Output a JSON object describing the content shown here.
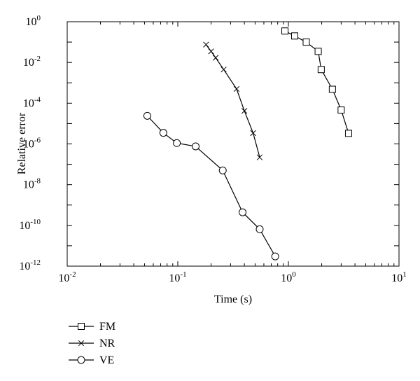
{
  "chart_data": {
    "type": "line",
    "title": "",
    "xlabel": "Time (s)",
    "ylabel": "Relative error",
    "xscale": "log",
    "yscale": "log",
    "xlim": [
      0.01,
      10
    ],
    "ylim": [
      1e-12,
      1
    ],
    "grid": false,
    "legend_placement": "below-left",
    "x_ticks": [
      {
        "value": 0.01,
        "base": "10",
        "exp": "-2"
      },
      {
        "value": 0.1,
        "base": "10",
        "exp": "-1"
      },
      {
        "value": 1,
        "base": "10",
        "exp": "0"
      },
      {
        "value": 10,
        "base": "10",
        "exp": "1"
      }
    ],
    "y_ticks": [
      {
        "value": 1,
        "base": "10",
        "exp": "0"
      },
      {
        "value": 0.01,
        "base": "10",
        "exp": "-2"
      },
      {
        "value": 0.0001,
        "base": "10",
        "exp": "-4"
      },
      {
        "value": 1e-06,
        "base": "10",
        "exp": "-6"
      },
      {
        "value": 1e-08,
        "base": "10",
        "exp": "-8"
      },
      {
        "value": 1e-10,
        "base": "10",
        "exp": "-10"
      },
      {
        "value": 1e-12,
        "base": "10",
        "exp": "-12"
      }
    ],
    "series": [
      {
        "name": "FM",
        "marker": "square",
        "x": [
          0.93,
          1.14,
          1.45,
          1.86,
          1.98,
          2.5,
          3.0,
          3.5
        ],
        "y": [
          0.35,
          0.2,
          0.1,
          0.035,
          0.0045,
          0.00048,
          4.6e-05,
          3.3e-06
        ]
      },
      {
        "name": "NR",
        "marker": "x",
        "x": [
          0.18,
          0.2,
          0.22,
          0.26,
          0.34,
          0.4,
          0.48,
          0.55
        ],
        "y": [
          0.075,
          0.035,
          0.017,
          0.0045,
          0.0005,
          4.2e-05,
          3.4e-06,
          2.2e-07
        ]
      },
      {
        "name": "VE",
        "marker": "circle",
        "x": [
          0.053,
          0.074,
          0.098,
          0.145,
          0.255,
          0.385,
          0.55,
          0.76
        ],
        "y": [
          2.4e-05,
          3.5e-06,
          1.1e-06,
          7.6e-07,
          5e-08,
          4.4e-10,
          6.5e-11,
          3e-12
        ]
      }
    ]
  }
}
